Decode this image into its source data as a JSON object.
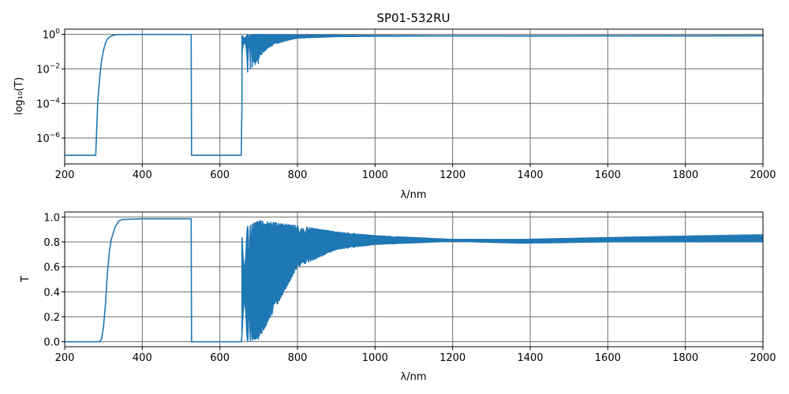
{
  "chart_data": [
    {
      "type": "line",
      "title": "SP01-532RU",
      "xlabel": "λ/nm",
      "ylabel": "log₁₀(T)",
      "yscale": "log",
      "xlim": [
        200,
        2000
      ],
      "ylim_log10": [
        -7.5,
        0.3
      ],
      "grid": true,
      "line_color": "#1f77b4",
      "xticks": [
        {
          "v": 200,
          "label": "200"
        },
        {
          "v": 400,
          "label": "400"
        },
        {
          "v": 600,
          "label": "600"
        },
        {
          "v": 800,
          "label": "800"
        },
        {
          "v": 1000,
          "label": "1000"
        },
        {
          "v": 1200,
          "label": "1200"
        },
        {
          "v": 1400,
          "label": "1400"
        },
        {
          "v": 1600,
          "label": "1600"
        },
        {
          "v": 1800,
          "label": "1800"
        },
        {
          "v": 2000,
          "label": "2000"
        }
      ],
      "yticks": [
        {
          "e": 0,
          "base": "10",
          "exp": "0"
        },
        {
          "e": -2,
          "base": "10",
          "exp": "−2"
        },
        {
          "e": -4,
          "base": "10",
          "exp": "−4"
        },
        {
          "e": -6,
          "base": "10",
          "exp": "−6"
        }
      ],
      "series": [
        {
          "x": [
            200,
            280,
            285,
            290,
            295,
            300,
            305,
            310,
            320,
            330,
            340,
            350,
            400,
            450,
            500,
            526,
            527,
            600,
            655,
            657
          ],
          "y": [
            1e-07,
            1e-07,
            0.0001,
            0.003,
            0.03,
            0.12,
            0.3,
            0.55,
            0.8,
            0.92,
            0.97,
            0.98,
            0.985,
            0.985,
            0.985,
            0.985,
            1e-07,
            1e-07,
            1e-07,
            0.0001
          ]
        }
      ]
    },
    {
      "type": "line",
      "title": "",
      "xlabel": "λ/nm",
      "ylabel": "T",
      "xlim": [
        200,
        2000
      ],
      "ylim": [
        -0.04,
        1.04
      ],
      "grid": true,
      "line_color": "#1f77b4",
      "xticks": [
        {
          "v": 200,
          "label": "200"
        },
        {
          "v": 400,
          "label": "400"
        },
        {
          "v": 600,
          "label": "600"
        },
        {
          "v": 800,
          "label": "800"
        },
        {
          "v": 1000,
          "label": "1000"
        },
        {
          "v": 1200,
          "label": "1200"
        },
        {
          "v": 1400,
          "label": "1400"
        },
        {
          "v": 1600,
          "label": "1600"
        },
        {
          "v": 1800,
          "label": "1800"
        },
        {
          "v": 2000,
          "label": "2000"
        }
      ],
      "yticks": [
        {
          "v": 0.0,
          "label": "0.0"
        },
        {
          "v": 0.2,
          "label": "0.2"
        },
        {
          "v": 0.4,
          "label": "0.4"
        },
        {
          "v": 0.6,
          "label": "0.6"
        },
        {
          "v": 0.8,
          "label": "0.8"
        },
        {
          "v": 1.0,
          "label": "1.0"
        }
      ],
      "series": [
        {
          "x": [
            200,
            290,
            295,
            300,
            305,
            310,
            315,
            320,
            330,
            340,
            350,
            400,
            450,
            500,
            526,
            527,
            600,
            655
          ],
          "y": [
            0,
            0,
            0.02,
            0.12,
            0.3,
            0.55,
            0.72,
            0.82,
            0.92,
            0.97,
            0.98,
            0.985,
            0.985,
            0.985,
            0.985,
            0,
            0,
            0
          ]
        }
      ],
      "oscillation_region": {
        "x_start": 657,
        "x_end": 2000,
        "mean": 0.81,
        "peak_max": 0.97,
        "note_points": [
          {
            "x": 700,
            "min": 0.02,
            "max": 0.97
          },
          {
            "x": 800,
            "min": 0.6,
            "max": 0.93
          },
          {
            "x": 900,
            "min": 0.74,
            "max": 0.88
          },
          {
            "x": 1000,
            "min": 0.78,
            "max": 0.85
          },
          {
            "x": 1200,
            "min": 0.805,
            "max": 0.82
          },
          {
            "x": 1380,
            "min": 0.79,
            "max": 0.82
          },
          {
            "x": 1600,
            "min": 0.8,
            "max": 0.835
          },
          {
            "x": 2000,
            "min": 0.8,
            "max": 0.86
          }
        ]
      }
    }
  ]
}
